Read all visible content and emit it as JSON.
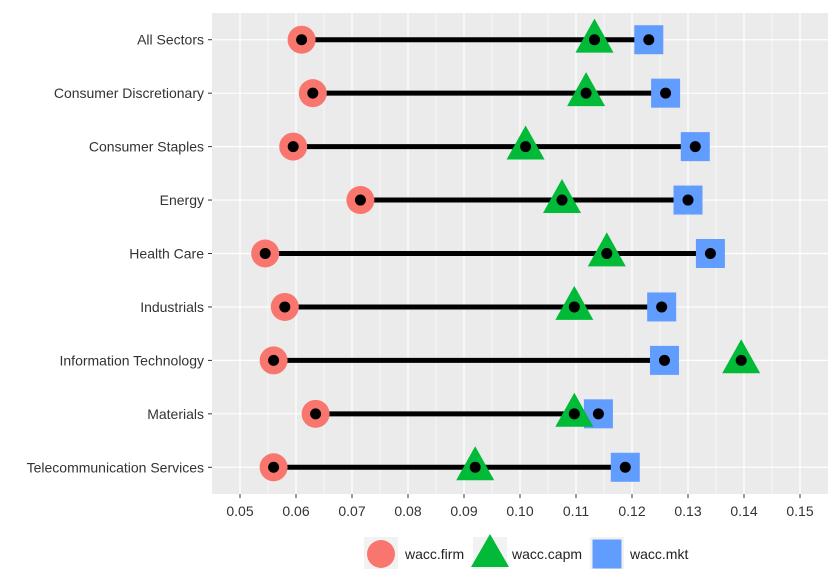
{
  "chart_data": {
    "type": "dumbbell",
    "categories": [
      "All Sectors",
      "Consumer Discretionary",
      "Consumer Staples",
      "Energy",
      "Health Care",
      "Industrials",
      "Information Technology",
      "Materials",
      "Telecommunication Services"
    ],
    "series": [
      {
        "name": "wacc.firm",
        "values": [
          0.061,
          0.063,
          0.0595,
          0.0715,
          0.0545,
          0.058,
          0.056,
          0.0635,
          0.056
        ]
      },
      {
        "name": "wacc.capm",
        "values": [
          0.1133,
          0.1118,
          0.101,
          0.1075,
          0.1155,
          0.1097,
          0.1395,
          0.1097,
          0.092
        ]
      },
      {
        "name": "wacc.mkt",
        "values": [
          0.123,
          0.126,
          0.1313,
          0.13,
          0.134,
          0.1253,
          0.1258,
          0.114,
          0.1188
        ]
      }
    ],
    "xlim": [
      0.045,
      0.155
    ],
    "xticks": [
      "0.05",
      "0.06",
      "0.07",
      "0.08",
      "0.09",
      "0.10",
      "0.11",
      "0.12",
      "0.13",
      "0.14",
      "0.15"
    ],
    "grid": true,
    "legend_position": "bottom",
    "colors": {
      "panel": "#EBEBEB",
      "grid": "#FFFFFF",
      "line": "#000000",
      "wacc.firm": "#F8766D",
      "wacc.capm": "#00BA38",
      "wacc.mkt": "#619CFF"
    },
    "legend": [
      {
        "label": "wacc.firm",
        "shape": "circle"
      },
      {
        "label": "wacc.capm",
        "shape": "triangle"
      },
      {
        "label": "wacc.mkt",
        "shape": "square"
      }
    ]
  }
}
